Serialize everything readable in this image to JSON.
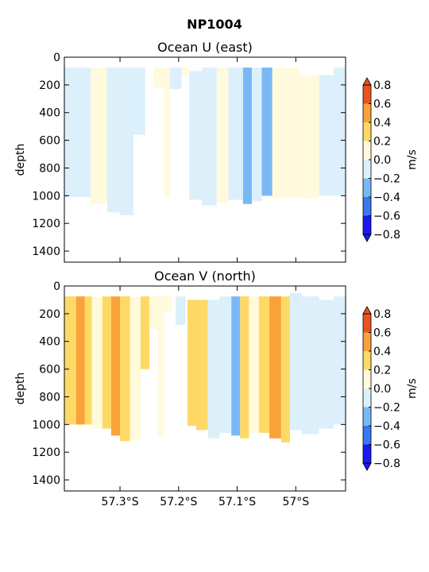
{
  "figure": {
    "title": "NP1004"
  },
  "colorbar": {
    "label": "m/s",
    "levels": [
      -0.8,
      -0.6,
      -0.4,
      -0.2,
      0.0,
      0.2,
      0.4,
      0.6,
      0.8
    ],
    "tick_labels": [
      "−0.8",
      "−0.6",
      "−0.4",
      "−0.2",
      "0.0",
      "0.2",
      "0.4",
      "0.6",
      "0.8"
    ],
    "colors": [
      "#1a1af0",
      "#3a78f0",
      "#7ab8f5",
      "#dcf0fb",
      "#fffadc",
      "#ffd966",
      "#f9a23a",
      "#e8541f"
    ]
  },
  "chart_data": [
    {
      "type": "heatmap",
      "title": "Ocean U (east)",
      "ylabel": "depth",
      "ylim": [
        1480,
        0
      ],
      "y_ticks": [
        0,
        200,
        400,
        600,
        800,
        1000,
        1200,
        1400
      ],
      "xlim": [
        -57.395,
        -56.915
      ],
      "x_ticks": [
        -57.3,
        -57.2,
        -57.1,
        -57.0
      ],
      "x_tick_labels": [],
      "units": "m/s",
      "columns": [
        {
          "x0": -57.395,
          "x1": -57.363,
          "top": 75,
          "bottom": 1010,
          "v": -0.1
        },
        {
          "x0": -57.363,
          "x1": -57.35,
          "top": 75,
          "bottom": 1010,
          "v": -0.1
        },
        {
          "x0": -57.35,
          "x1": -57.322,
          "top": 75,
          "bottom": 1060,
          "v": 0.1
        },
        {
          "x0": -57.322,
          "x1": -57.3,
          "top": 75,
          "bottom": 1120,
          "v": -0.1
        },
        {
          "x0": -57.3,
          "x1": -57.277,
          "top": 75,
          "bottom": 1140,
          "v": -0.1
        },
        {
          "x0": -57.277,
          "x1": -57.257,
          "top": 75,
          "bottom": 560,
          "v": -0.1
        },
        {
          "x0": -57.243,
          "x1": -57.225,
          "top": 75,
          "bottom": 220,
          "v": 0.1
        },
        {
          "x0": -57.225,
          "x1": -57.215,
          "top": 75,
          "bottom": 1010,
          "v": 0.1
        },
        {
          "x0": -57.215,
          "x1": -57.195,
          "top": 75,
          "bottom": 230,
          "v": -0.1
        },
        {
          "x0": -57.195,
          "x1": -57.182,
          "top": 75,
          "bottom": 130,
          "v": 0.1
        },
        {
          "x0": -57.182,
          "x1": -57.16,
          "top": 100,
          "bottom": 1030,
          "v": -0.1
        },
        {
          "x0": -57.16,
          "x1": -57.135,
          "top": 75,
          "bottom": 1070,
          "v": -0.1
        },
        {
          "x0": -57.135,
          "x1": -57.115,
          "top": 75,
          "bottom": 1050,
          "v": 0.1
        },
        {
          "x0": -57.115,
          "x1": -57.09,
          "top": 75,
          "bottom": 1030,
          "v": -0.1
        },
        {
          "x0": -57.09,
          "x1": -57.075,
          "top": 75,
          "bottom": 1060,
          "v": -0.3
        },
        {
          "x0": -57.075,
          "x1": -57.058,
          "top": 75,
          "bottom": 1040,
          "v": -0.1
        },
        {
          "x0": -57.058,
          "x1": -57.04,
          "top": 75,
          "bottom": 1000,
          "v": -0.3
        },
        {
          "x0": -57.04,
          "x1": -57.02,
          "top": 75,
          "bottom": 1020,
          "v": 0.1
        },
        {
          "x0": -57.02,
          "x1": -56.995,
          "top": 75,
          "bottom": 1010,
          "v": 0.1
        },
        {
          "x0": -56.995,
          "x1": -56.96,
          "top": 130,
          "bottom": 1020,
          "v": 0.1
        },
        {
          "x0": -56.96,
          "x1": -56.935,
          "top": 130,
          "bottom": 1000,
          "v": -0.1
        },
        {
          "x0": -56.935,
          "x1": -56.915,
          "top": 75,
          "bottom": 1000,
          "v": -0.1
        }
      ]
    },
    {
      "type": "heatmap",
      "title": "Ocean V (north)",
      "ylabel": "depth",
      "ylim": [
        1480,
        0
      ],
      "y_ticks": [
        0,
        200,
        400,
        600,
        800,
        1000,
        1200,
        1400
      ],
      "xlim": [
        -57.395,
        -56.915
      ],
      "x_ticks": [
        -57.3,
        -57.2,
        -57.1,
        -57.0
      ],
      "x_tick_labels": [
        "57.3°S",
        "57.2°S",
        "57.1°S",
        "57°S"
      ],
      "units": "m/s",
      "columns": [
        {
          "x0": -57.395,
          "x1": -57.375,
          "top": 75,
          "bottom": 1000,
          "v": 0.3
        },
        {
          "x0": -57.375,
          "x1": -57.36,
          "top": 75,
          "bottom": 1000,
          "v": 0.5
        },
        {
          "x0": -57.36,
          "x1": -57.348,
          "top": 75,
          "bottom": 1000,
          "v": 0.3
        },
        {
          "x0": -57.348,
          "x1": -57.33,
          "top": 75,
          "bottom": 1030,
          "v": 0.1
        },
        {
          "x0": -57.33,
          "x1": -57.315,
          "top": 75,
          "bottom": 1030,
          "v": 0.3
        },
        {
          "x0": -57.315,
          "x1": -57.3,
          "top": 75,
          "bottom": 1080,
          "v": 0.5
        },
        {
          "x0": -57.3,
          "x1": -57.283,
          "top": 75,
          "bottom": 1120,
          "v": 0.3
        },
        {
          "x0": -57.283,
          "x1": -57.265,
          "top": 75,
          "bottom": 1110,
          "v": 0.1
        },
        {
          "x0": -57.265,
          "x1": -57.25,
          "top": 75,
          "bottom": 600,
          "v": 0.3
        },
        {
          "x0": -57.25,
          "x1": -57.235,
          "top": 75,
          "bottom": 310,
          "v": 0.1
        },
        {
          "x0": -57.235,
          "x1": -57.225,
          "top": 75,
          "bottom": 1090,
          "v": 0.1
        },
        {
          "x0": -57.225,
          "x1": -57.212,
          "top": 75,
          "bottom": 190,
          "v": 0.1
        },
        {
          "x0": -57.205,
          "x1": -57.188,
          "top": 75,
          "bottom": 280,
          "v": -0.1
        },
        {
          "x0": -57.185,
          "x1": -57.17,
          "top": 100,
          "bottom": 1010,
          "v": 0.3
        },
        {
          "x0": -57.17,
          "x1": -57.15,
          "top": 100,
          "bottom": 1040,
          "v": 0.3
        },
        {
          "x0": -57.15,
          "x1": -57.13,
          "top": 100,
          "bottom": 1100,
          "v": -0.1
        },
        {
          "x0": -57.13,
          "x1": -57.11,
          "top": 75,
          "bottom": 1060,
          "v": -0.1
        },
        {
          "x0": -57.11,
          "x1": -57.095,
          "top": 75,
          "bottom": 1080,
          "v": -0.3
        },
        {
          "x0": -57.095,
          "x1": -57.08,
          "top": 75,
          "bottom": 1100,
          "v": 0.3
        },
        {
          "x0": -57.08,
          "x1": -57.063,
          "top": 75,
          "bottom": 1060,
          "v": 0.1
        },
        {
          "x0": -57.063,
          "x1": -57.045,
          "top": 75,
          "bottom": 1060,
          "v": 0.3
        },
        {
          "x0": -57.045,
          "x1": -57.025,
          "top": 75,
          "bottom": 1100,
          "v": 0.5
        },
        {
          "x0": -57.025,
          "x1": -57.01,
          "top": 75,
          "bottom": 1130,
          "v": 0.3
        },
        {
          "x0": -57.01,
          "x1": -56.99,
          "top": 50,
          "bottom": 1040,
          "v": -0.1
        },
        {
          "x0": -56.99,
          "x1": -56.96,
          "top": 75,
          "bottom": 1070,
          "v": -0.1
        },
        {
          "x0": -56.96,
          "x1": -56.935,
          "top": 100,
          "bottom": 1030,
          "v": -0.1
        },
        {
          "x0": -56.935,
          "x1": -56.915,
          "top": 75,
          "bottom": 1000,
          "v": -0.1
        }
      ]
    }
  ]
}
